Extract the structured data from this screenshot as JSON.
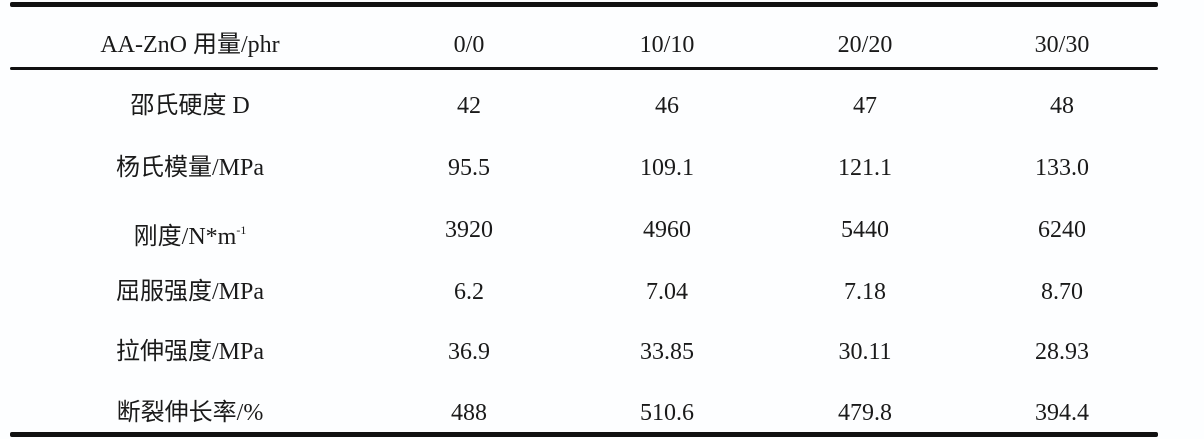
{
  "table": {
    "header": [
      "AA-ZnO 用量/phr",
      "0/0",
      "10/10",
      "20/20",
      "30/30"
    ],
    "rows": [
      {
        "label": "邵氏硬度 D",
        "label_sup": "",
        "values": [
          "42",
          "46",
          "47",
          "48"
        ]
      },
      {
        "label": "杨氏模量/MPa",
        "label_sup": "",
        "values": [
          "95.5",
          "109.1",
          "121.1",
          "133.0"
        ]
      },
      {
        "label": "刚度/N*m",
        "label_sup": "-1",
        "values": [
          "3920",
          "4960",
          "5440",
          "6240"
        ]
      },
      {
        "label": "屈服强度/MPa",
        "label_sup": "",
        "values": [
          "6.2",
          "7.04",
          "7.18",
          "8.70"
        ]
      },
      {
        "label": "拉伸强度/MPa",
        "label_sup": "",
        "values": [
          "36.9",
          "33.85",
          "30.11",
          "28.93"
        ]
      },
      {
        "label": "断裂伸长率/%",
        "label_sup": "",
        "values": [
          "488",
          "510.6",
          "479.8",
          "394.4"
        ]
      }
    ]
  }
}
